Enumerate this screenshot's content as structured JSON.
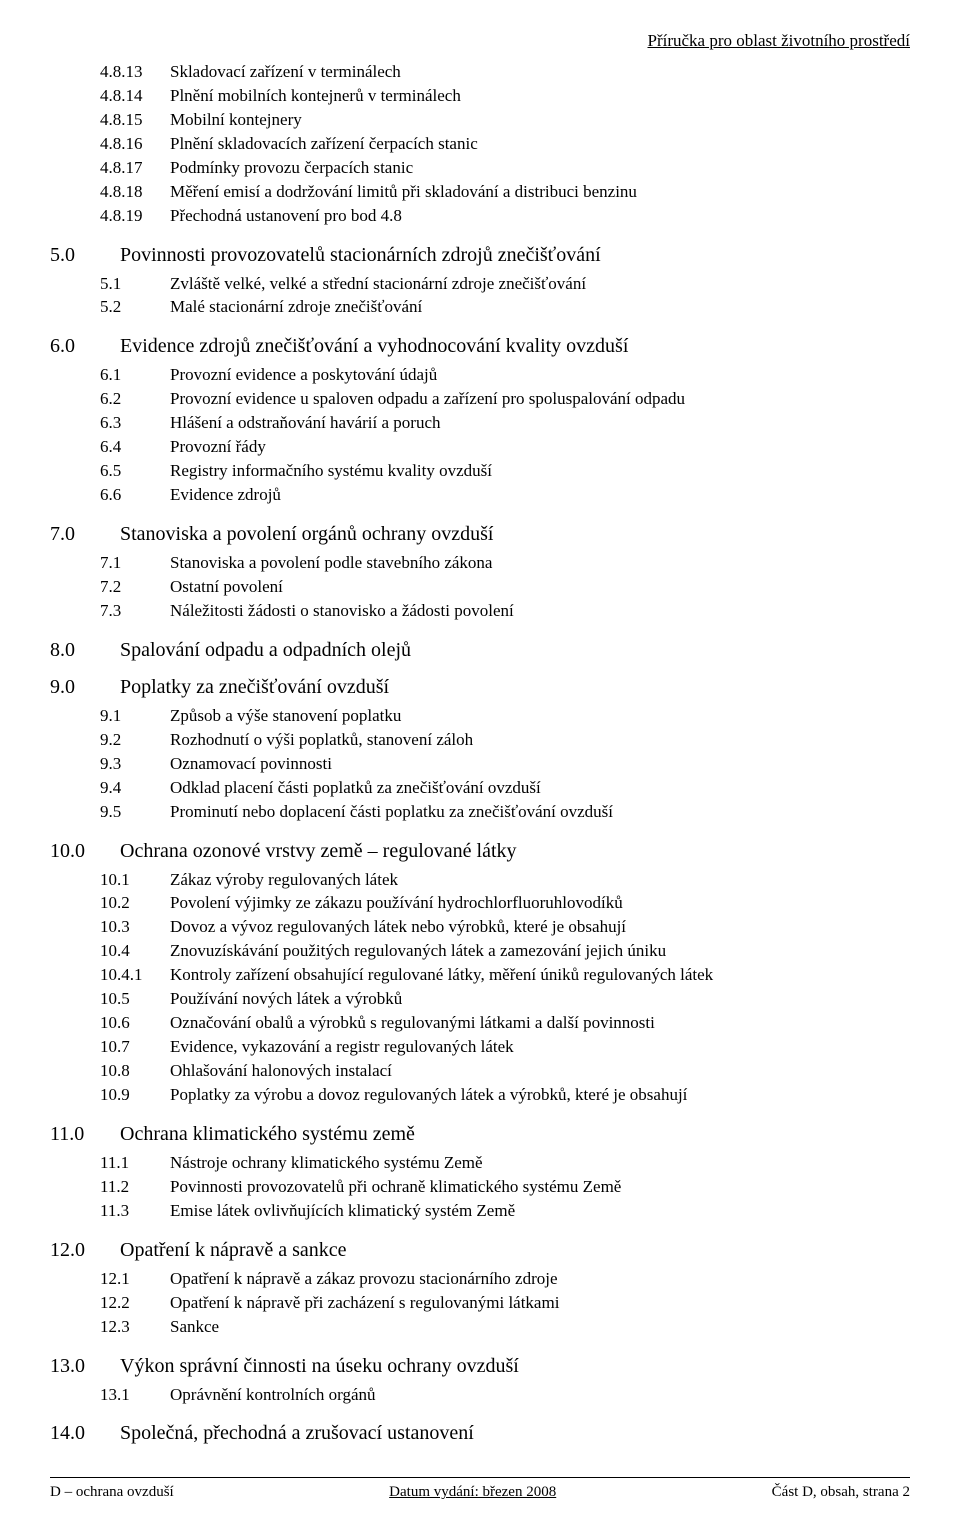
{
  "header": {
    "right": "Příručka pro oblast životního prostředí"
  },
  "sections_pre": {
    "items": [
      {
        "num": "4.8.13",
        "txt": "Skladovací zařízení v terminálech"
      },
      {
        "num": "4.8.14",
        "txt": "Plnění mobilních kontejnerů v terminálech"
      },
      {
        "num": "4.8.15",
        "txt": "Mobilní kontejnery"
      },
      {
        "num": "4.8.16",
        "txt": "Plnění skladovacích zařízení čerpacích stanic"
      },
      {
        "num": "4.8.17",
        "txt": "Podmínky provozu čerpacích stanic"
      },
      {
        "num": "4.8.18",
        "txt": "Měření emisí a dodržování limitů při skladování a distribuci benzinu"
      },
      {
        "num": "4.8.19",
        "txt": "Přechodná ustanovení pro bod 4.8"
      }
    ]
  },
  "s5": {
    "num": "5.0",
    "title": "Povinnosti provozovatelů stacionárních zdrojů znečišťování",
    "items": [
      {
        "num": "5.1",
        "txt": "Zvláště velké, velké a střední stacionární zdroje znečišťování"
      },
      {
        "num": "5.2",
        "txt": "Malé stacionární zdroje znečišťování"
      }
    ]
  },
  "s6": {
    "num": "6.0",
    "title": "Evidence zdrojů znečišťování a vyhodnocování kvality ovzduší",
    "items": [
      {
        "num": "6.1",
        "txt": "Provozní evidence a poskytování údajů"
      },
      {
        "num": "6.2",
        "txt": "Provozní evidence u spaloven odpadu a zařízení pro spoluspalování odpadu"
      },
      {
        "num": "6.3",
        "txt": "Hlášení a odstraňování havárií a poruch"
      },
      {
        "num": "6.4",
        "txt": "Provozní řády"
      },
      {
        "num": "6.5",
        "txt": "Registry informačního systému kvality ovzduší"
      },
      {
        "num": "6.6",
        "txt": "Evidence zdrojů"
      }
    ]
  },
  "s7": {
    "num": "7.0",
    "title": "Stanoviska a povolení orgánů ochrany ovzduší",
    "items": [
      {
        "num": "7.1",
        "txt": "Stanoviska a povolení podle stavebního zákona"
      },
      {
        "num": "7.2",
        "txt": "Ostatní povolení"
      },
      {
        "num": "7.3",
        "txt": "Náležitosti žádosti o stanovisko a žádosti povolení"
      }
    ]
  },
  "s8": {
    "num": "8.0",
    "title": "Spalování odpadu a odpadních olejů"
  },
  "s9": {
    "num": "9.0",
    "title": "Poplatky za znečišťování ovzduší",
    "items": [
      {
        "num": "9.1",
        "txt": "Způsob a výše stanovení poplatku"
      },
      {
        "num": "9.2",
        "txt": "Rozhodnutí o výši poplatků, stanovení záloh"
      },
      {
        "num": "9.3",
        "txt": "Oznamovací povinnosti"
      },
      {
        "num": "9.4",
        "txt": "Odklad placení části poplatků za  znečišťování ovzduší"
      },
      {
        "num": "9.5",
        "txt": "Prominutí nebo doplacení části poplatku za znečišťování ovzduší"
      }
    ]
  },
  "s10": {
    "num": "10.0",
    "title": "Ochrana ozonové vrstvy země – regulované látky",
    "items": [
      {
        "num": "10.1",
        "txt": "Zákaz výroby regulovaných látek"
      },
      {
        "num": "10.2",
        "txt": "Povolení výjimky ze zákazu používání hydrochlorfluoruhlovodíků"
      },
      {
        "num": "10.3",
        "txt": "Dovoz a vývoz regulovaných látek nebo výrobků, které je obsahují"
      },
      {
        "num": "10.4",
        "txt": "Znovuzískávání použitých regulovaných látek a zamezování jejich úniku"
      },
      {
        "num": "10.4.1",
        "txt": "Kontroly zařízení obsahující regulované látky, měření úniků regulovaných látek"
      },
      {
        "num": "10.5",
        "txt": "Používání nových látek a výrobků"
      },
      {
        "num": "10.6",
        "txt": "Označování obalů a výrobků s regulovanými látkami a další povinnosti"
      },
      {
        "num": "10.7",
        "txt": "Evidence, vykazování a registr regulovaných látek"
      },
      {
        "num": "10.8",
        "txt": "Ohlašování halonových instalací"
      },
      {
        "num": "10.9",
        "txt": "Poplatky za výrobu a dovoz regulovaných látek a výrobků, které je obsahují"
      }
    ]
  },
  "s11": {
    "num": "11.0",
    "title": "Ochrana klimatického systému země",
    "items": [
      {
        "num": "11.1",
        "txt": "Nástroje ochrany klimatického systému Země"
      },
      {
        "num": "11.2",
        "txt": "Povinnosti provozovatelů při ochraně klimatického systému Země"
      },
      {
        "num": "11.3",
        "txt": "Emise látek ovlivňujících klimatický systém Země"
      }
    ]
  },
  "s12": {
    "num": "12.0",
    "title": "Opatření k nápravě a sankce",
    "items": [
      {
        "num": "12.1",
        "txt": "Opatření k nápravě a zákaz provozu stacionárního zdroje"
      },
      {
        "num": "12.2",
        "txt": "Opatření k nápravě při zacházení s regulovanými látkami"
      },
      {
        "num": "12.3",
        "txt": "Sankce"
      }
    ]
  },
  "s13": {
    "num": "13.0",
    "title": "Výkon správní činnosti na úseku ochrany ovzduší",
    "items": [
      {
        "num": "13.1",
        "txt": "Oprávnění kontrolních orgánů"
      }
    ]
  },
  "s14": {
    "num": "14.0",
    "title": "Společná, přechodná a zrušovací ustanovení"
  },
  "footer": {
    "left": "D – ochrana ovzduší",
    "mid": "Datum vydání: březen 2008",
    "right": "Část D, obsah, strana 2"
  }
}
